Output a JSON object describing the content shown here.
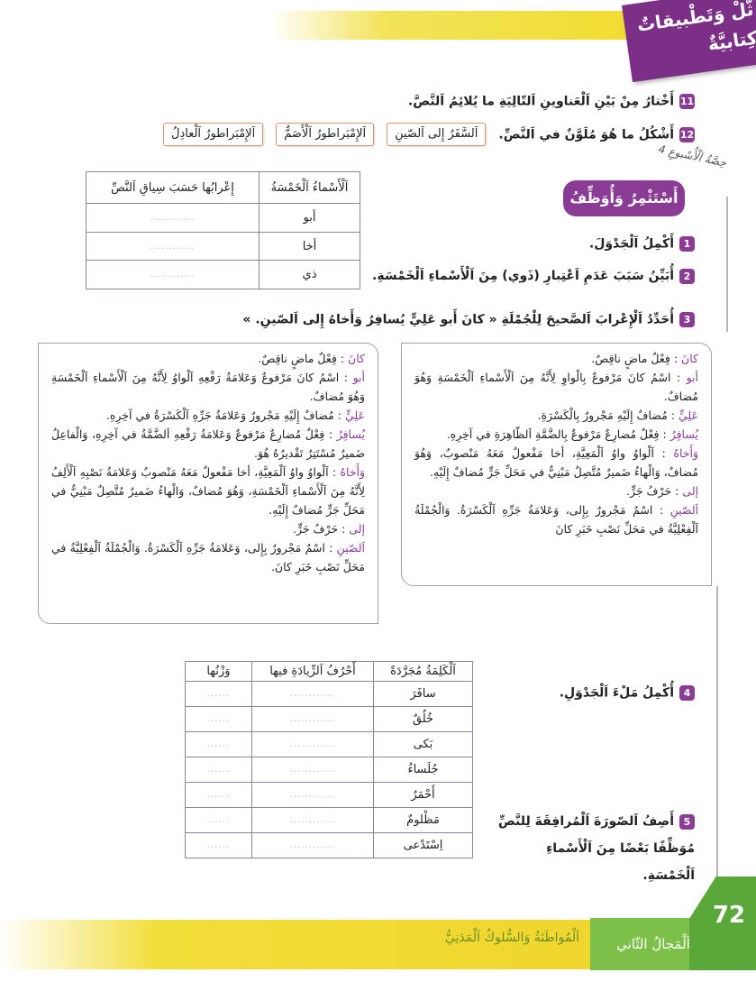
{
  "header": {
    "section_tag": "ثّلْ وَتَطْبيقاتٌ كِتابيَّةٌ"
  },
  "questions_top": [
    {
      "number": "11",
      "text": "أَخْتارُ مِنْ بَيْنِ اَلْعَناوينِ اَلتّالِيَةِ ما يُلائِمُ اَلنَّصَّ."
    },
    {
      "number": "12",
      "text": "أَشْكُلُ ما هُوَ مُلَوَّنٌ في اَلنَّصِّ."
    }
  ],
  "title_options": [
    "اَلسَّفَرُ إِلى اَلصّينِ",
    "اَلإِمْبَراطورُ اَلْأَصَمُّ",
    "اَلإِمْبَراطورُ اَلْعادِلُ"
  ],
  "week_note": "حِصَّةُ اَلْأُسْبوعِ 4",
  "section_pill": "أَسْتَثْمِرُ وَأُوَظِّفُ",
  "table1": {
    "headers": [
      "اَلْأَسْماءُ اَلْخَمْسَةُ",
      "إِعْرابُها حَسَبَ سِياقِ اَلنَّصِّ"
    ],
    "rows": [
      [
        "أبو",
        "............"
      ],
      [
        "أخا",
        "............"
      ],
      [
        "ذي",
        "............"
      ]
    ]
  },
  "questions": [
    {
      "number": "1",
      "text": "أَكْمِلُ اَلْجَدْوَلَ."
    },
    {
      "number": "2",
      "text": "أُبَيِّنُ سَبَبَ عَدَمِ اَعْتِبارِ (ذَوي) مِنَ اَلْأَسْماءِ اَلْخَمْسَةِ."
    },
    {
      "number": "3",
      "text": "أُحَدِّدُ اَلْإِعْرابَ اَلصَّحيحَ لِلْجُمْلَةِ « كانَ أَبو عَلِيٍّ يُسافِرُ وَأَخاهُ إِلى اَلصّينِ. »"
    },
    {
      "number": "4",
      "text": "أُكْمِلُ مَلْءَ اَلْجَدْوَلِ."
    },
    {
      "number": "5",
      "text": "أَصِفُ اَلصّورَةَ اَلْمُرافِقَةَ لِلنَّصِّ",
      "text2": "مُوَظِّفًا بَعْضًا مِنَ اَلْأَسْماءِ اَلْخَمْسَةِ."
    }
  ],
  "parse_right": [
    {
      "word": "كانَ",
      "text": " : فِعْلٌ ماضٍ ناقِصٌ."
    },
    {
      "word": "أبو",
      "text": " : اسْمُ كانَ مَرْفوعٌ بِالْواوِ لِأَنَّهُ مِنَ اَلْأَسْماءِ اَلْخَمْسَةِ وَهُوَ مُضافٌ."
    },
    {
      "word": "عَلِيٍّ",
      "text": " : مُضافٌ إِلَيْهِ مَجْرورٌ بِالْكَسْرَةِ."
    },
    {
      "word": "يُسافِرُ",
      "text": " : فِعْلٌ مُضارِعٌ مَرْفوعٌ بِالضَّمَّةِ اَلظّاهِرَةِ في آخِرِهِ."
    },
    {
      "word": "وَأَخاهُ",
      "text": " : اَلْواوُ واوُ اَلْمَعِيَّةِ، أخا مَفْعولٌ مَعَهُ مَنْصوبٌ، وَهُوَ مُضافٌ، وَالْهاءُ ضَميرٌ مُتَّصِلٌ مَبْنِيٌّ في مَحَلِّ جَرٍّ مُضافٌ إِلَيْهِ."
    },
    {
      "word": "إلى",
      "text": " : حَرْفُ جَرٍّ."
    },
    {
      "word": "اَلصّينِ",
      "text": " : اسْمٌ مَجْرورٌ بِإِلى، وَعَلامَةُ جَرِّهِ اَلْكَسْرَةُ. وَالْجُمْلَةُ اَلْفِعْلِيَّةُ في مَحَلِّ نَصْبِ خَبَرِ كانَ"
    }
  ],
  "parse_left": [
    {
      "word": "كانَ",
      "text": " : فِعْلٌ ماضٍ ناقِصٌ."
    },
    {
      "word": "أبو",
      "text": " : اسْمُ كانَ مَرْفوعٌ وَعَلامَةُ رَفْعِهِ اَلْواوُ لِأَنَّهُ مِنَ اَلْأَسْماءِ اَلْخَمْسَةِ وَهُوَ مُضافٌ."
    },
    {
      "word": "عَلِيٍّ",
      "text": " : مُضافٌ إِلَيْهِ مَجْرورٌ وَعَلامَةُ جَرِّهِ اَلْكَسْرَةُ في آخِرِهِ."
    },
    {
      "word": "يُسافِرُ",
      "text": " : فِعْلٌ مُضارِعٌ مَرْفوعٌ وَعَلامَةُ رَفْعِهِ اَلضَّمَّةُ في آخِرِهِ، وَالْفاعِلُ ضَميرٌ مُسْتَتِرٌ تَقْديرُهُ هُوَ."
    },
    {
      "word": "وَأَخاهُ",
      "text": " : اَلْواوُ واوُ اَلْمَعِيَّةِ، أخا مَفْعولٌ مَعَهُ مَنْصوبٌ وَعَلامَةُ نَصْبِهِ اَلْأَلِفُ لِأَنَّهُ مِنَ اَلْأَسْماءِ اَلْخَمْسَةِ، وَهُوَ مُضافٌ، وَالْهاءُ ضَميرٌ مُتَّصِلٌ مَبْنِيٌّ في مَحَلِّ جَرٍّ مُضافٌ إِلَيْهِ."
    },
    {
      "word": "إلى",
      "text": " : حَرْفُ جَرٍّ."
    },
    {
      "word": "اَلصّينِ",
      "text": " : اسْمٌ مَجْرورٌ بِإِلى، وَعَلامَةُ جَرِّهِ اَلْكَسْرَةُ. وَالْجُمْلَةُ اَلْفِعْلِيَّةُ في مَحَلِّ نَصْبِ خَبَرِ كانَ."
    }
  ],
  "table2": {
    "headers": [
      "اَلْكَلِمَةُ مُجَرَّدَةً",
      "أَحْرُفُ اَلزِّيادَةِ فيها",
      "وَزْنُها"
    ],
    "rows": [
      [
        "سافَرَ",
        "............",
        "......"
      ],
      [
        "خُلُقٌ",
        "............",
        "......"
      ],
      [
        "بَكى",
        "............",
        "......"
      ],
      [
        "جُلَساءُ",
        "............",
        "......"
      ],
      [
        "أَحْمَرُ",
        "............",
        "......"
      ],
      [
        "مَظْلومٌ",
        "............",
        "......"
      ],
      [
        "اِسْتَدْعى",
        "............",
        "......"
      ]
    ]
  },
  "footer": {
    "theme": "اَلْمُواطَنَةُ وَالسُّلوكُ اَلْمَدَنِيُّ",
    "domain": "اَلْمَجالُ الثّاني",
    "page_number": "72"
  },
  "colors": {
    "accent_purple": "#8a3c95",
    "footer_green": "#7cc04a",
    "band_yellow": "#f1dc2e"
  }
}
